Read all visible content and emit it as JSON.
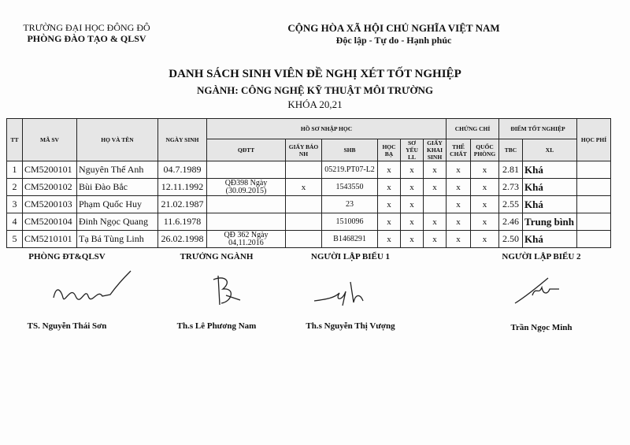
{
  "header": {
    "left_line1": "TRƯỜNG ĐẠI HỌC ĐÔNG ĐÔ",
    "left_line2": "PHÒNG ĐÀO TẠO & QLSV",
    "right_line1": "CỘNG HÒA XÃ HỘI CHỦ NGHĨA VIỆT NAM",
    "right_line2": "Độc lập - Tự do - Hạnh phúc"
  },
  "title": {
    "main": "DANH SÁCH SINH VIÊN ĐỀ NGHỊ XÉT TỐT NGHIỆP",
    "major": "NGÀNH: CÔNG NGHỆ KỸ THUẬT MÔI TRƯỜNG",
    "cohort": "KHÓA 20,21"
  },
  "table": {
    "headers": {
      "tt": "TT",
      "ma_sv": "MÃ SV",
      "ho_ten": "HỌ VÀ TÊN",
      "ngay_sinh": "NGÀY SINH",
      "ho_so": "HỒ SƠ NHẬP HỌC",
      "qdtt": "QĐTT",
      "giay_bao": "GIẤY BÁO NH",
      "shb": "SHB",
      "hoc_ba": "HỌC BẠ",
      "so_yeu": "SƠ YẾU LL",
      "giay_khai_sinh": "GIẤY KHAI SINH",
      "chung_chi": "CHỨNG CHỈ",
      "the_chat": "THỂ CHẤT",
      "quoc_phong": "QUỐC PHÒNG",
      "diem": "ĐIỂM TỐT NGHIỆP",
      "tbc": "TBC",
      "xl": "XL",
      "hoc_phi": "HỌC PHÍ"
    },
    "rows": [
      {
        "tt": "1",
        "ma_sv": "CM5200101",
        "ho_ten": "Nguyên Thế Anh",
        "ngay_sinh": "04.7.1989",
        "qdtt": "",
        "giay_bao": "",
        "shb": "05219.PT07-L2",
        "hoc_ba": "x",
        "so_yeu": "x",
        "gks": "x",
        "the_chat": "x",
        "quoc_phong": "x",
        "tbc": "2.81",
        "xl": "Khá",
        "hoc_phi": ""
      },
      {
        "tt": "2",
        "ma_sv": "CM5200102",
        "ho_ten": "Bùi Đào Bắc",
        "ngay_sinh": "12.11.1992",
        "qdtt": "QĐ398 Ngày (30.09.2015)",
        "giay_bao": "x",
        "shb": "1543550",
        "hoc_ba": "x",
        "so_yeu": "x",
        "gks": "x",
        "the_chat": "x",
        "quoc_phong": "x",
        "tbc": "2.73",
        "xl": "Khá",
        "hoc_phi": ""
      },
      {
        "tt": "3",
        "ma_sv": "CM5200103",
        "ho_ten": "Phạm Quốc Huy",
        "ngay_sinh": "21.02.1987",
        "qdtt": "",
        "giay_bao": "",
        "shb": "23",
        "hoc_ba": "x",
        "so_yeu": "x",
        "gks": "",
        "the_chat": "x",
        "quoc_phong": "x",
        "tbc": "2.55",
        "xl": "Khá",
        "hoc_phi": ""
      },
      {
        "tt": "4",
        "ma_sv": "CM5200104",
        "ho_ten": "Đinh Ngọc Quang",
        "ngay_sinh": "11.6.1978",
        "qdtt": "",
        "giay_bao": "",
        "shb": "1510096",
        "hoc_ba": "x",
        "so_yeu": "x",
        "gks": "x",
        "the_chat": "x",
        "quoc_phong": "x",
        "tbc": "2.46",
        "xl": "Trung bình",
        "hoc_phi": ""
      },
      {
        "tt": "5",
        "ma_sv": "CM5210101",
        "ho_ten": "Tạ Bá Tùng Linh",
        "ngay_sinh": "26.02.1998",
        "qdtt": "QĐ 362 Ngày 04,11.2016",
        "giay_bao": "",
        "shb": "B1468291",
        "hoc_ba": "x",
        "so_yeu": "x",
        "gks": "x",
        "the_chat": "x",
        "quoc_phong": "x",
        "tbc": "2.50",
        "xl": "Khá",
        "hoc_phi": ""
      }
    ]
  },
  "signatures": [
    {
      "title": "PHÒNG ĐT&QLSV",
      "name": "TS. Nguyễn Thái Sơn"
    },
    {
      "title": "TRƯỞNG NGÀNH",
      "name": "Th.s Lê Phương Nam"
    },
    {
      "title": "NGƯỜI LẬP BIỂU 1",
      "name": "Th.s Nguyễn Thị Vượng"
    },
    {
      "title": "NGƯỜI LẬP BIỂU 2",
      "name": "Trần Ngọc Minh"
    }
  ]
}
